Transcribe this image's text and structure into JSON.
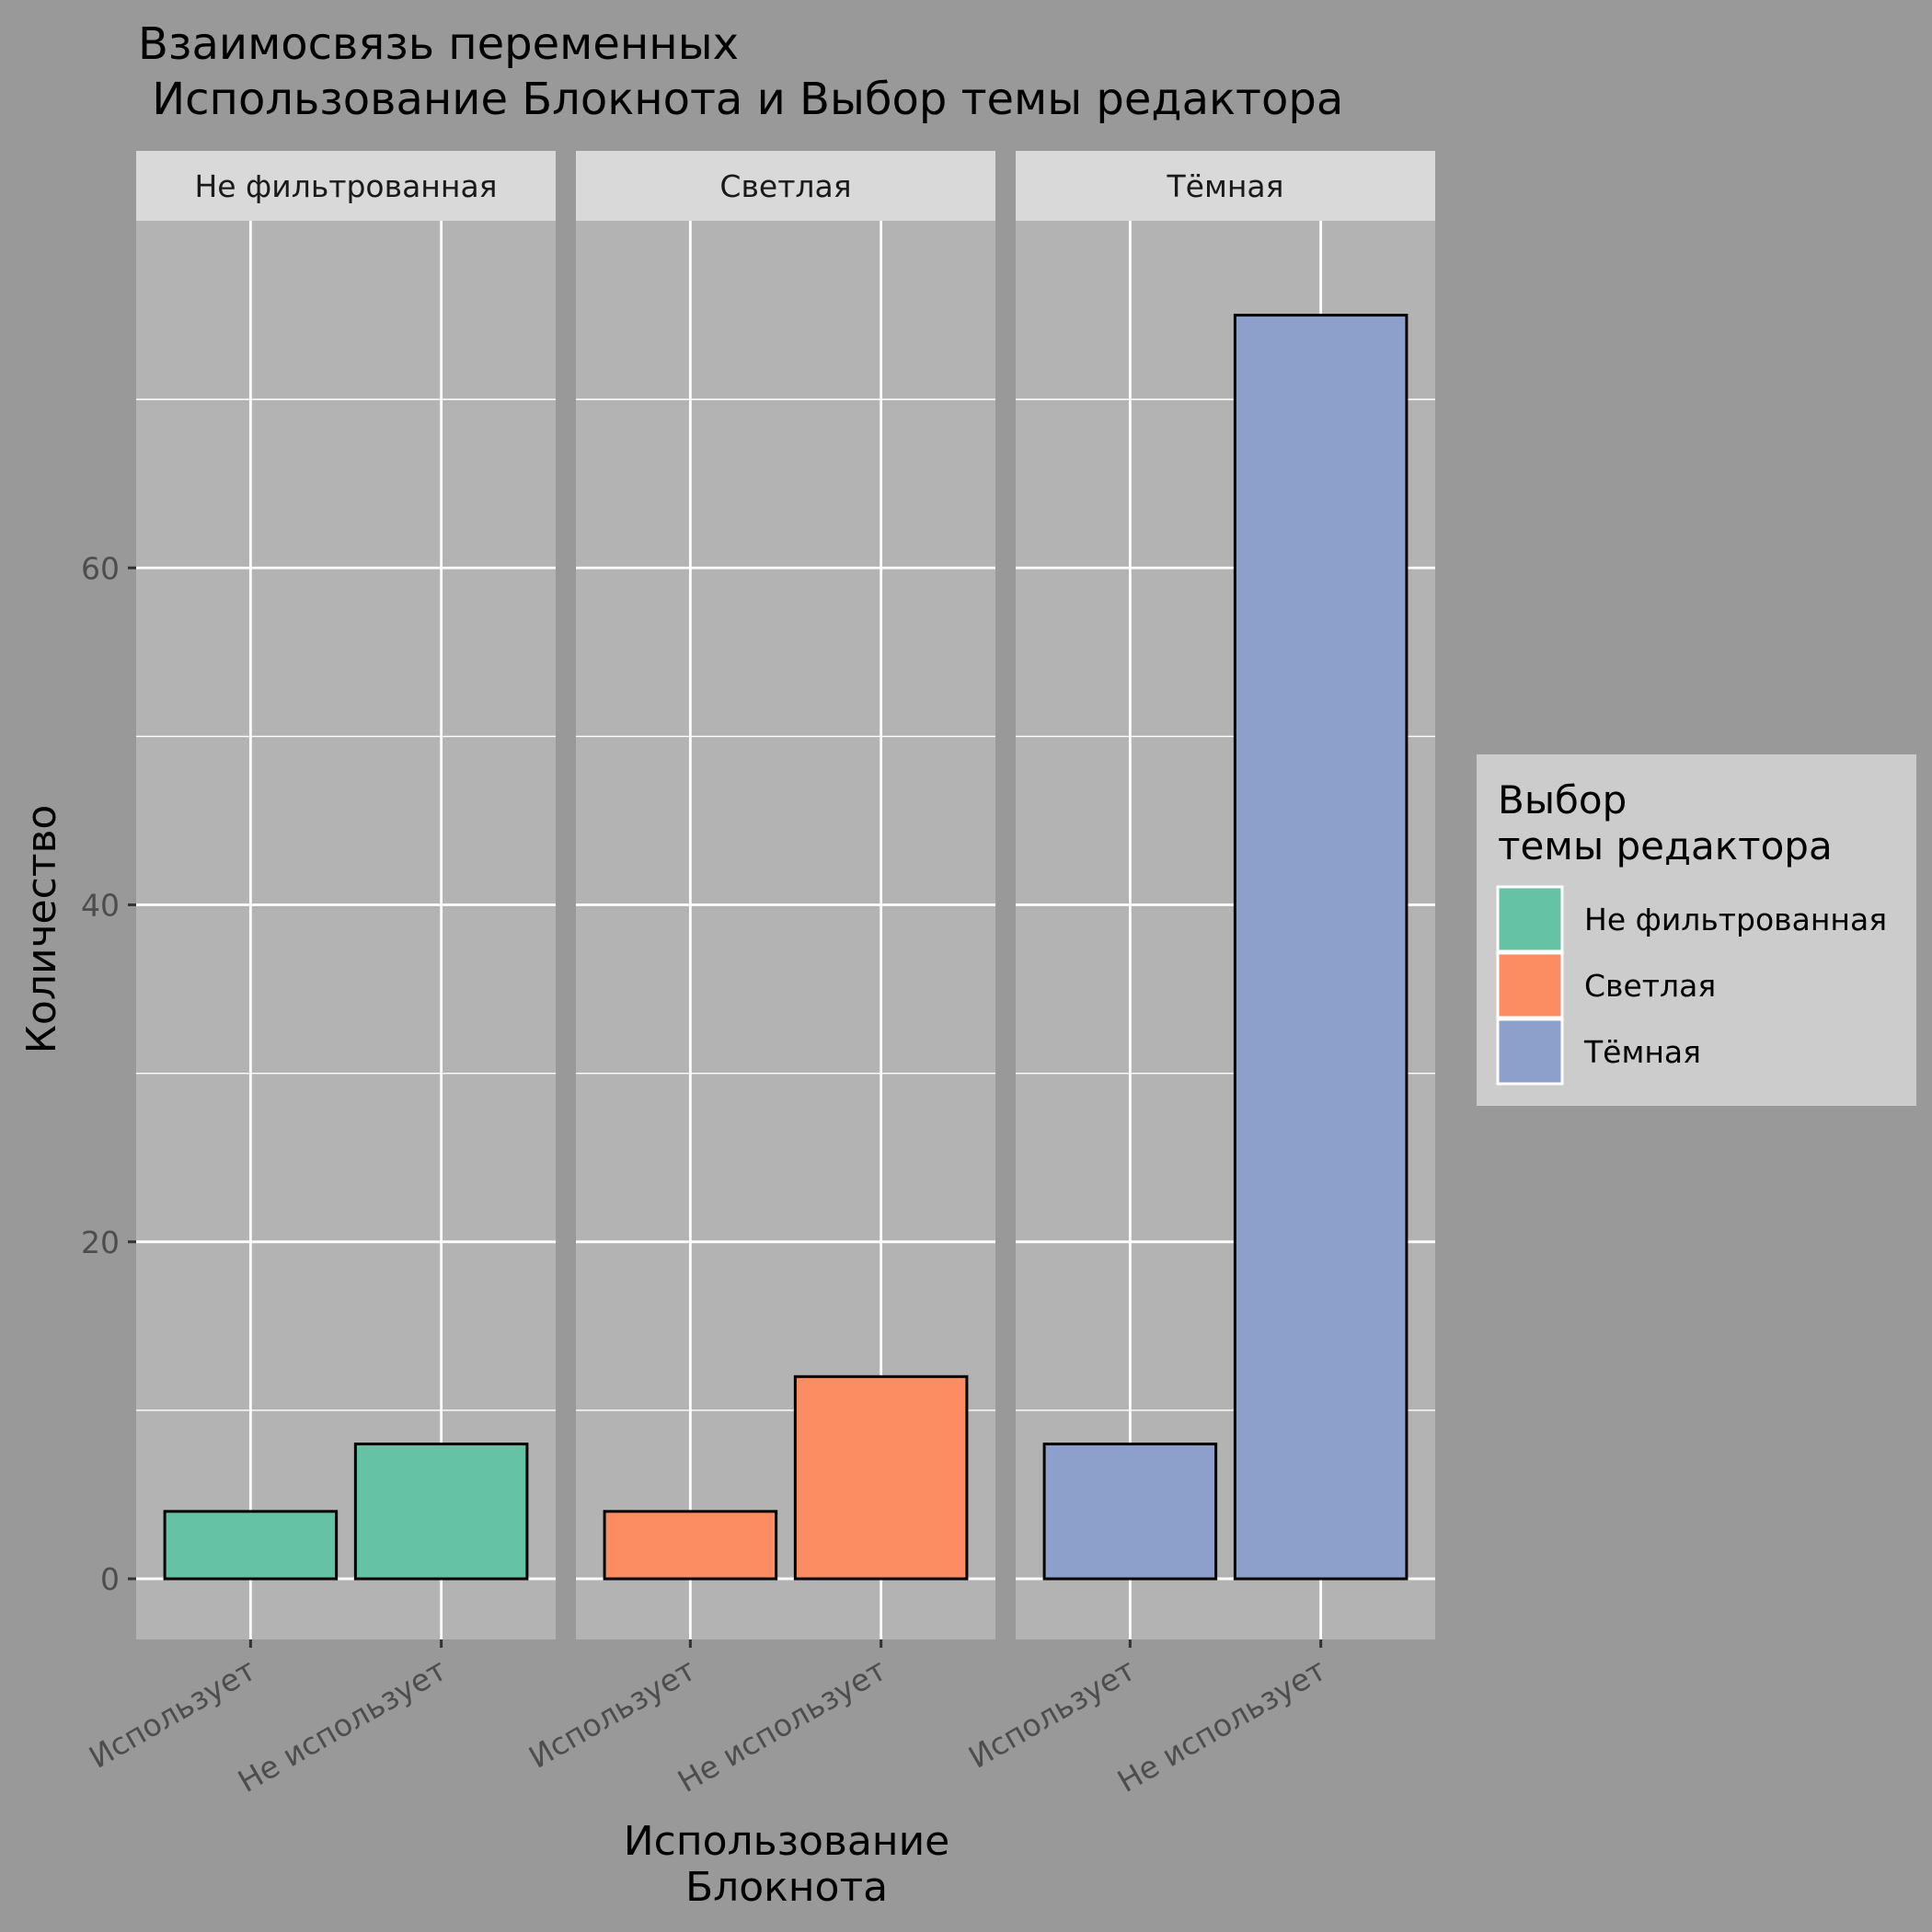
{
  "chart_data": {
    "type": "bar",
    "title_lines": [
      "Взаимосвязь переменных",
      " Использование Блокнота и Выбор темы редактора"
    ],
    "xlabel_lines": [
      "Использование",
      "Блокнота"
    ],
    "ylabel": "Количество",
    "ylim": [
      -3.6,
      80.6
    ],
    "yticks": [
      0,
      20,
      40,
      60
    ],
    "y_minor_gridlines": [
      10,
      30,
      50,
      70
    ],
    "grid": true,
    "legend_position": "right",
    "categories": [
      "Использует",
      "Не использует"
    ],
    "facets": [
      {
        "label": "Не фильтрованная",
        "values": [
          4,
          8
        ],
        "color": "#66C2A5"
      },
      {
        "label": "Светлая",
        "values": [
          4,
          12
        ],
        "color": "#FC8D62"
      },
      {
        "label": "Тёмная",
        "values": [
          8,
          75
        ],
        "color": "#8DA0CB"
      }
    ],
    "legend": {
      "title_lines": [
        "Выбор",
        "темы редактора"
      ],
      "items": [
        {
          "label": "Не фильтрованная",
          "color": "#66C2A5"
        },
        {
          "label": "Светлая",
          "color": "#FC8D62"
        },
        {
          "label": "Тёмная",
          "color": "#8DA0CB"
        }
      ]
    },
    "colors": {
      "background": "#999999",
      "panel": "#B3B3B3",
      "strip": "#D9D9D9",
      "legend_box": "#CCCCCC",
      "gridline": "#FFFFFF",
      "bar_outline": "#000000"
    }
  }
}
